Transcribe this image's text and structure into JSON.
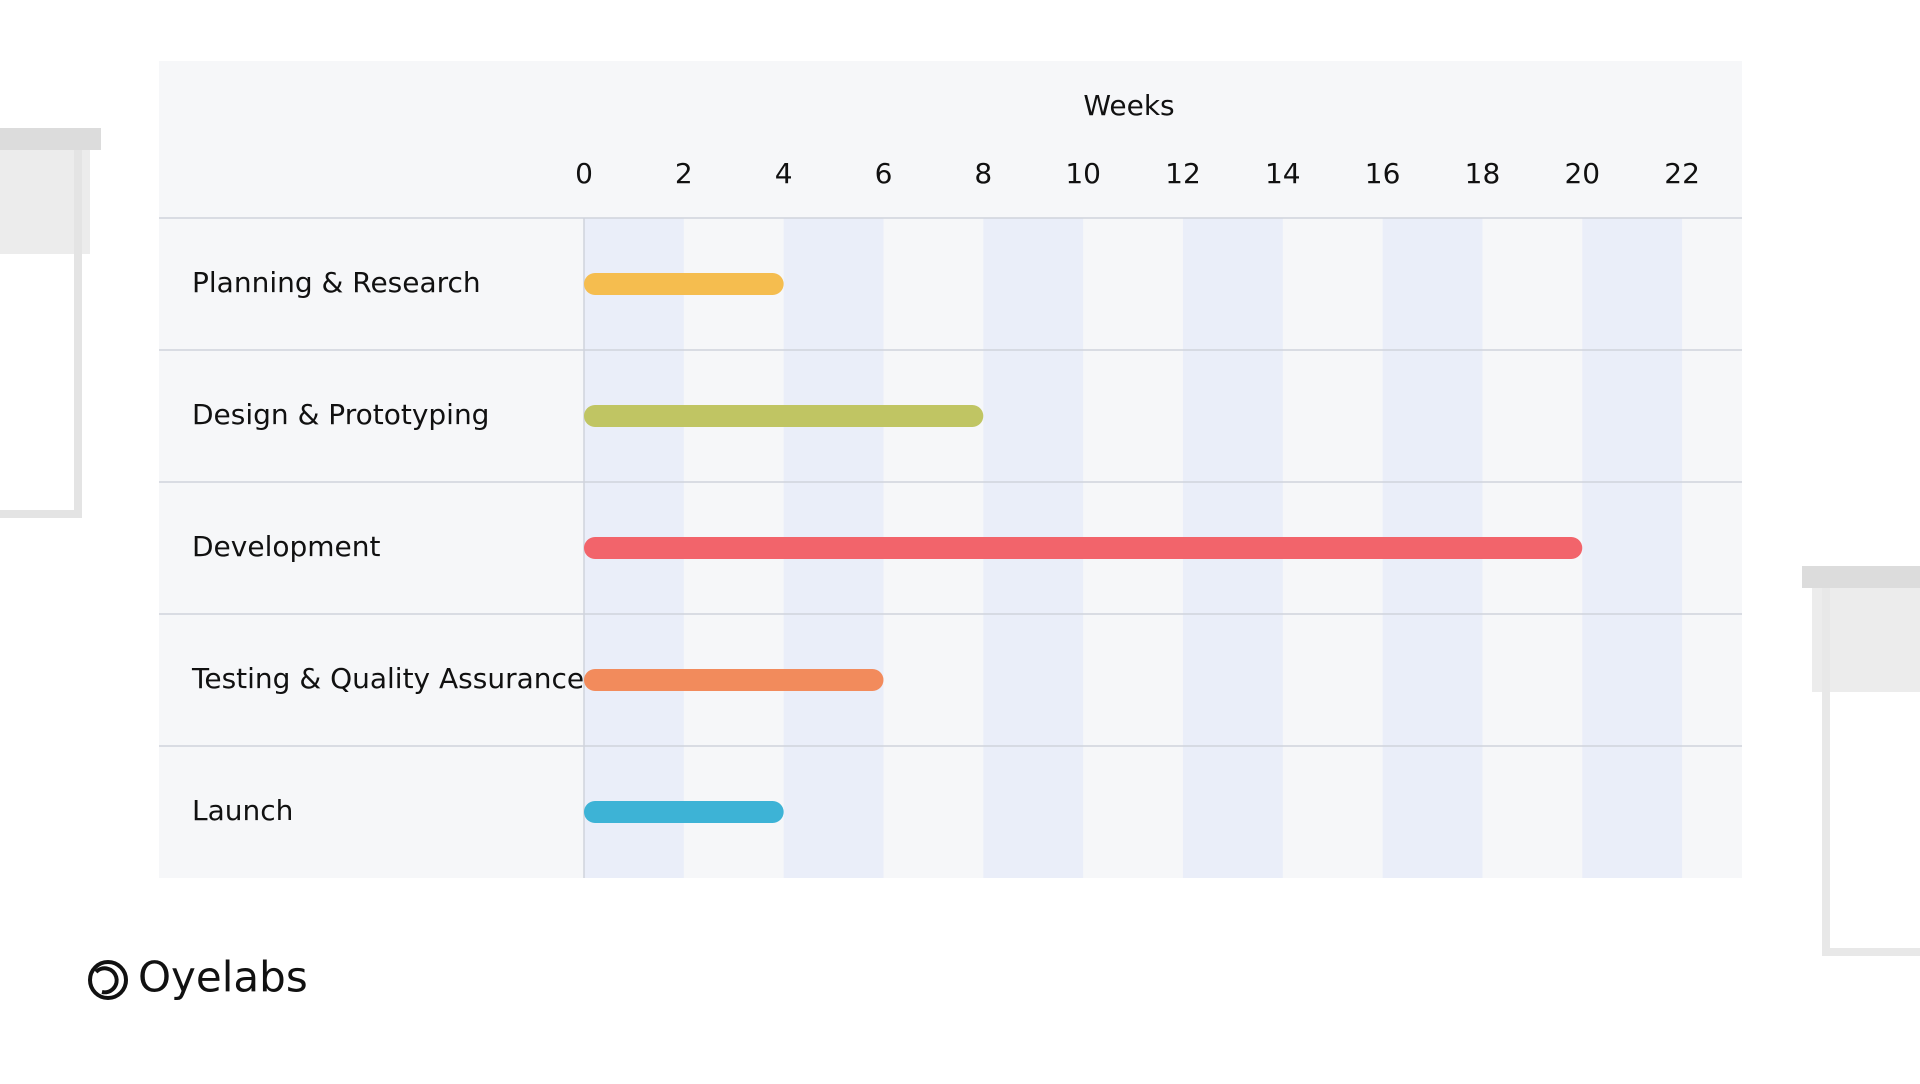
{
  "chart_data": {
    "type": "gantt",
    "x_label": "Weeks",
    "categories": [
      "Planning & Research",
      "Design & Prototyping",
      "Development",
      "Testing & Quality Assurance",
      "Launch"
    ],
    "values": [
      4,
      8,
      20,
      6,
      4
    ],
    "colors": [
      "#f5bd4f",
      "#c0c563",
      "#f2646b",
      "#f28b5c",
      "#3db3d6"
    ],
    "xlim": [
      0,
      23.2
    ],
    "xticks": [
      0,
      2,
      4,
      6,
      8,
      10,
      12,
      14,
      16,
      18,
      20,
      22
    ],
    "grid_bands": true
  },
  "brand": "Oyelabs"
}
